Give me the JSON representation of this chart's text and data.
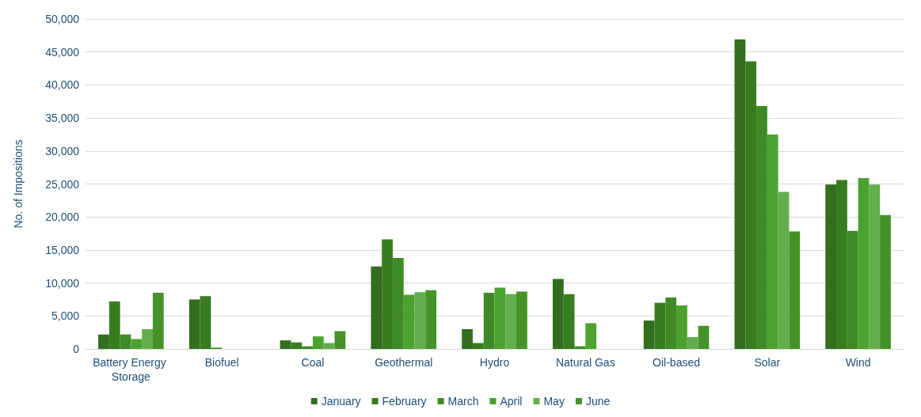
{
  "chart_data": {
    "type": "bar",
    "ylabel": "No. of Impositions",
    "categories": [
      "Battery Energy Storage",
      "Biofuel",
      "Coal",
      "Geothermal",
      "Hydro",
      "Natural Gas",
      "Oil-based",
      "Solar",
      "Wind"
    ],
    "series": [
      {
        "name": "January",
        "color": "#326e1e",
        "values": [
          2200,
          7500,
          1300,
          12500,
          3000,
          10600,
          4300,
          46900,
          24900
        ]
      },
      {
        "name": "February",
        "color": "#387c20",
        "values": [
          7200,
          8000,
          1000,
          16600,
          900,
          8300,
          7000,
          43600,
          25600
        ]
      },
      {
        "name": "March",
        "color": "#3f8a24",
        "values": [
          2200,
          200,
          400,
          13800,
          8500,
          400,
          7800,
          36800,
          17900
        ]
      },
      {
        "name": "April",
        "color": "#4ca22e",
        "values": [
          1500,
          null,
          1900,
          8200,
          9300,
          3900,
          6600,
          32500,
          25900
        ]
      },
      {
        "name": "May",
        "color": "#62ad4d",
        "values": [
          3000,
          null,
          900,
          8600,
          8300,
          null,
          1800,
          23800,
          24900
        ]
      },
      {
        "name": "June",
        "color": "#459229",
        "values": [
          8500,
          null,
          2700,
          8900,
          8700,
          null,
          3500,
          17800,
          20300
        ]
      }
    ],
    "ylim": [
      0,
      50000
    ],
    "yticks": [
      0,
      {
        "value": 5000,
        "label": "5,000"
      },
      {
        "value": 10000,
        "label": "10,000"
      },
      {
        "value": 15000,
        "label": "15,000"
      },
      {
        "value": 20000,
        "label": "20,000"
      },
      {
        "value": 25000,
        "label": "25,000"
      },
      {
        "value": 30000,
        "label": "30,000"
      },
      {
        "value": 35000,
        "label": "35,000"
      },
      {
        "value": 40000,
        "label": "40,000"
      },
      {
        "value": 45000,
        "label": "45,000"
      },
      {
        "value": 50000,
        "label": "50,000"
      }
    ],
    "grid": "y",
    "legend": "bottom"
  }
}
